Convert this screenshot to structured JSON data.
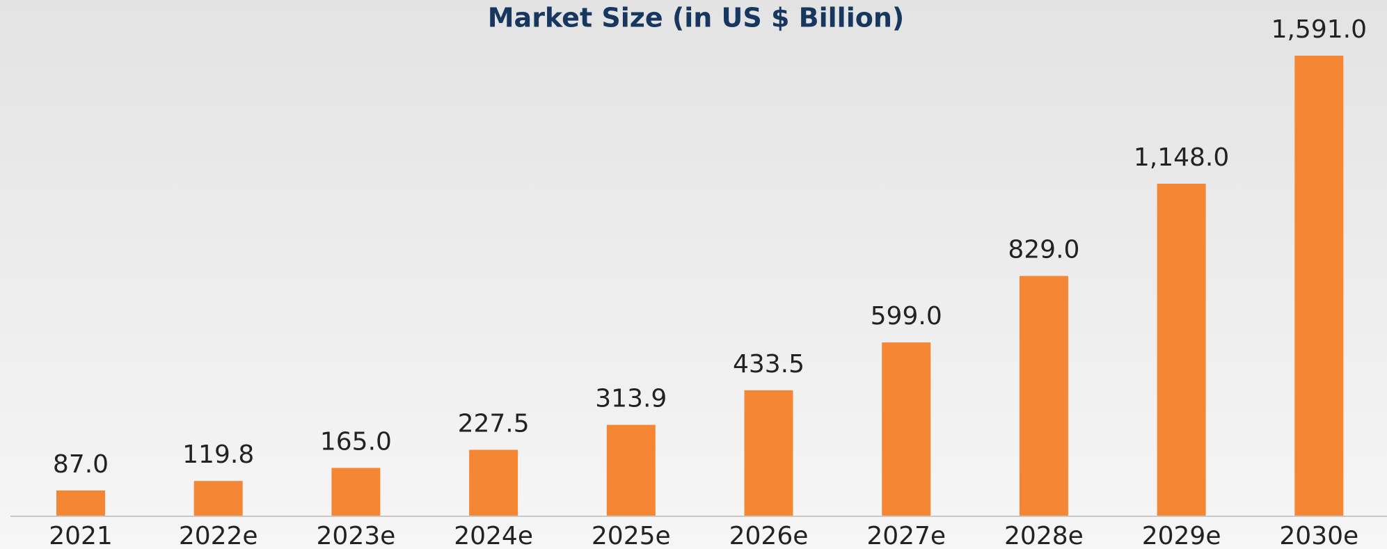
{
  "chart_data": {
    "type": "bar",
    "title": "Market Size (in US $ Billion)",
    "categories": [
      "2021",
      "2022e",
      "2023e",
      "2024e",
      "2025e",
      "2026e",
      "2027e",
      "2028e",
      "2029e",
      "2030e"
    ],
    "values": [
      87.0,
      119.8,
      165.0,
      227.5,
      313.9,
      433.5,
      599.0,
      829.0,
      1148.0,
      1591.0
    ],
    "value_labels": [
      "87.0",
      "119.8",
      "165.0",
      "227.5",
      "313.9",
      "433.5",
      "599.0",
      "829.0",
      "1,148.0",
      "1,591.0"
    ],
    "color": "#f58634"
  }
}
